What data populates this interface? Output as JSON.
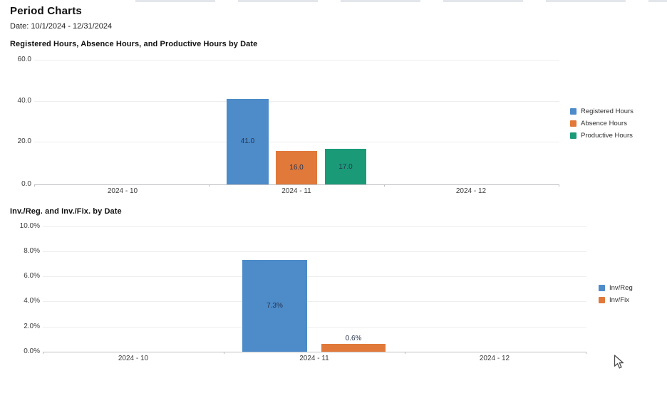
{
  "page": {
    "title": "Period Charts",
    "date_label": "Date: 10/1/2024 - 12/31/2024"
  },
  "accent_colors": {
    "blue": "#4d8bc9",
    "orange": "#e0793a",
    "green": "#1b9a78",
    "bar_label_text": "#26334d"
  },
  "chart_data": [
    {
      "type": "bar",
      "title": "Registered Hours, Absence Hours, and Productive Hours by Date",
      "categories": [
        "2024 - 10",
        "2024 - 11",
        "2024 - 12"
      ],
      "series": [
        {
          "name": "Registered Hours",
          "color": "#4d8bc9",
          "values": [
            null,
            41.0,
            null
          ],
          "label": "41.0"
        },
        {
          "name": "Absence Hours",
          "color": "#e0793a",
          "values": [
            null,
            16.0,
            null
          ],
          "label": "16.0"
        },
        {
          "name": "Productive Hours",
          "color": "#1b9a78",
          "values": [
            null,
            17.0,
            null
          ],
          "label": "17.0"
        }
      ],
      "ylim": [
        0,
        60
      ],
      "y_ticks": [
        "60.0",
        "40.0",
        "20.0",
        "0.0"
      ],
      "grid": true,
      "legend_position": "right"
    },
    {
      "type": "bar",
      "title": "Inv./Reg. and Inv./Fix. by Date",
      "categories": [
        "2024 - 10",
        "2024 - 11",
        "2024 - 12"
      ],
      "series": [
        {
          "name": "Inv/Reg",
          "color": "#4d8bc9",
          "values": [
            null,
            7.3,
            null
          ],
          "label": "7.3%"
        },
        {
          "name": "Inv/Fix",
          "color": "#e0793a",
          "values": [
            null,
            0.6,
            null
          ],
          "label": "0.6%"
        }
      ],
      "ylim": [
        0,
        10
      ],
      "y_ticks": [
        "10.0%",
        "8.0%",
        "6.0%",
        "4.0%",
        "2.0%",
        "0.0%"
      ],
      "grid": true,
      "legend_position": "right"
    }
  ]
}
